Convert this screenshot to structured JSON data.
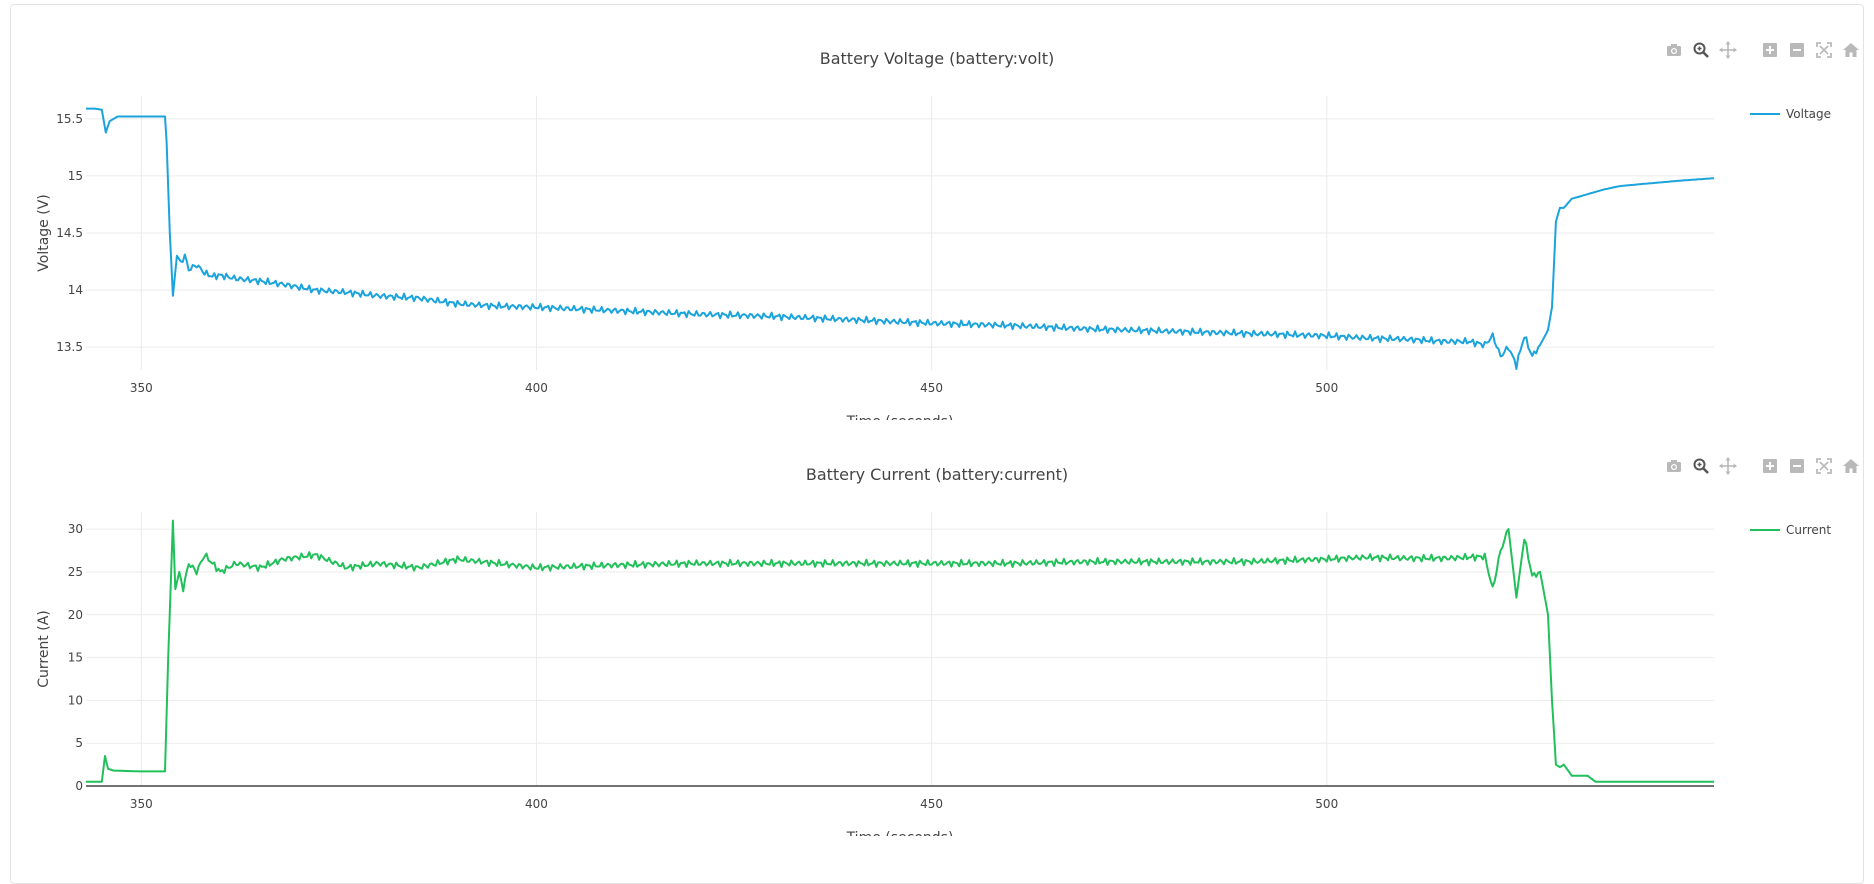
{
  "charts": [
    {
      "id": "voltage",
      "title": "Battery Voltage (battery:volt)",
      "xlabel": "Time (seconds)",
      "ylabel": "Voltage (V)",
      "legend_label": "Voltage",
      "color": "#1ba3dc"
    },
    {
      "id": "current",
      "title": "Battery Current (battery:current)",
      "xlabel": "Time (seconds)",
      "ylabel": "Current (A)",
      "legend_label": "Current",
      "color": "#22c05a"
    }
  ],
  "modebar": [
    "camera-icon",
    "zoom-icon",
    "pan-icon",
    "zoom-in-icon",
    "zoom-out-icon",
    "autoscale-icon",
    "home-icon"
  ],
  "chart_data": [
    {
      "type": "line",
      "title": "Battery Voltage (battery:volt)",
      "xlabel": "Time (seconds)",
      "ylabel": "Voltage (V)",
      "xlim": [
        343,
        549
      ],
      "ylim": [
        13.3,
        15.7
      ],
      "xticks": [
        350,
        400,
        450,
        500
      ],
      "yticks": [
        13.5,
        14,
        14.5,
        15,
        15.5
      ],
      "xtick_labels": [
        "350",
        "400",
        "450",
        "500"
      ],
      "ytick_labels": [
        "13.5",
        "14",
        "14.5",
        "15",
        "15.5"
      ],
      "grid": true,
      "legend": "top-right",
      "series": [
        {
          "name": "Voltage",
          "color": "#1ba3dc",
          "x": [
            343,
            344,
            345,
            345.5,
            346,
            347,
            350,
            353,
            353.2,
            353.6,
            354,
            354.5,
            355,
            355.5,
            356,
            357,
            358,
            359,
            360,
            362,
            365,
            368,
            372,
            376,
            380,
            385,
            390,
            395,
            400,
            410,
            420,
            430,
            440,
            450,
            460,
            470,
            480,
            490,
            500,
            505,
            510,
            515,
            518,
            520,
            521,
            522,
            523,
            524,
            525,
            526,
            527,
            528,
            528.5,
            529,
            529.5,
            530,
            531,
            532,
            533,
            535,
            537,
            540,
            545,
            549
          ],
          "y": [
            15.59,
            15.59,
            15.58,
            15.38,
            15.48,
            15.52,
            15.52,
            15.52,
            15.3,
            14.5,
            13.95,
            14.3,
            14.25,
            14.3,
            14.18,
            14.22,
            14.15,
            14.12,
            14.13,
            14.1,
            14.08,
            14.05,
            14.0,
            13.98,
            13.95,
            13.93,
            13.88,
            13.86,
            13.85,
            13.82,
            13.79,
            13.77,
            13.74,
            13.71,
            13.69,
            13.66,
            13.64,
            13.62,
            13.6,
            13.58,
            13.57,
            13.55,
            13.55,
            13.52,
            13.6,
            13.42,
            13.5,
            13.34,
            13.6,
            13.42,
            13.52,
            13.65,
            13.85,
            14.6,
            14.72,
            14.72,
            14.8,
            14.82,
            14.84,
            14.88,
            14.91,
            14.93,
            14.96,
            14.98
          ]
        }
      ]
    },
    {
      "type": "line",
      "title": "Battery Current (battery:current)",
      "xlabel": "Time (seconds)",
      "ylabel": "Current (A)",
      "xlim": [
        343,
        549
      ],
      "ylim": [
        0,
        32
      ],
      "xticks": [
        350,
        400,
        450,
        500
      ],
      "yticks": [
        0,
        5,
        10,
        15,
        20,
        25,
        30
      ],
      "xtick_labels": [
        "350",
        "400",
        "450",
        "500"
      ],
      "ytick_labels": [
        "0",
        "5",
        "10",
        "15",
        "20",
        "25",
        "30"
      ],
      "grid": true,
      "legend": "top-right",
      "series": [
        {
          "name": "Current",
          "color": "#22c05a",
          "x": [
            343,
            345,
            345.4,
            345.8,
            346.5,
            350,
            353,
            353.4,
            354,
            354.3,
            354.8,
            355.3,
            356,
            357,
            358,
            360,
            362,
            365,
            368,
            372,
            376,
            380,
            385,
            390,
            395,
            400,
            410,
            420,
            430,
            440,
            450,
            460,
            470,
            480,
            490,
            500,
            505,
            510,
            515,
            520,
            521,
            522,
            523,
            524,
            525,
            526,
            527,
            528,
            528.5,
            529,
            529.5,
            530,
            531,
            532,
            533,
            534,
            536,
            540,
            545,
            549
          ],
          "y": [
            0.5,
            0.5,
            3.5,
            2.0,
            1.8,
            1.7,
            1.7,
            15,
            31,
            23,
            25,
            23,
            26,
            25,
            27,
            25,
            26,
            25.5,
            26.5,
            27,
            25.5,
            26,
            25.5,
            26.5,
            26,
            25.5,
            25.8,
            26,
            26,
            26,
            26,
            26,
            26.2,
            26.2,
            26.2,
            26.5,
            26.7,
            26.6,
            26.6,
            26.8,
            23,
            27.5,
            30,
            22,
            29,
            24.5,
            25,
            20,
            10,
            2.5,
            2.2,
            2.5,
            1.2,
            1.2,
            1.2,
            0.5,
            0.5,
            0.5,
            0.5,
            0.5
          ]
        }
      ]
    }
  ]
}
